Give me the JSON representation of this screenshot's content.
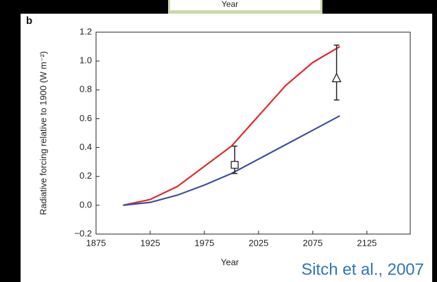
{
  "panel_label": "b",
  "upper_axis_label": "Year",
  "credit": "Sitch et al., 2007",
  "chart_data": {
    "type": "line",
    "xlabel": "Year",
    "ylabel": "Radiative forcing relative to 1900 (W m⁻²)",
    "xlim": [
      1875,
      2165
    ],
    "ylim": [
      -0.2,
      1.2
    ],
    "xticks": [
      1875,
      1925,
      1975,
      2025,
      2075,
      2125
    ],
    "yticks": [
      {
        "value": -0.2,
        "label": "−0.2"
      },
      {
        "value": 0,
        "label": "0.0"
      },
      0.2,
      0.4,
      0.6,
      0.8,
      {
        "value": 1,
        "label": "1.0"
      },
      1.2
    ],
    "x": [
      1900,
      1925,
      1950,
      1975,
      2000,
      2025,
      2050,
      2075,
      2100
    ],
    "series": [
      {
        "color": "#e3262b",
        "values": [
          0,
          0.04,
          0.13,
          0.27,
          0.41,
          0.62,
          0.83,
          0.99,
          1.1
        ]
      },
      {
        "color": "#3b4ea0",
        "values": [
          0,
          0.02,
          0.07,
          0.14,
          0.22,
          0.32,
          0.42,
          0.52,
          0.62
        ]
      }
    ],
    "observations": [
      {
        "marker": "square",
        "x": 2003,
        "value": 0.28,
        "low": 0.22,
        "high": 0.41
      },
      {
        "marker": "triangle",
        "x": 2097,
        "value": 0.88,
        "low": 0.73,
        "high": 1.11
      }
    ]
  }
}
